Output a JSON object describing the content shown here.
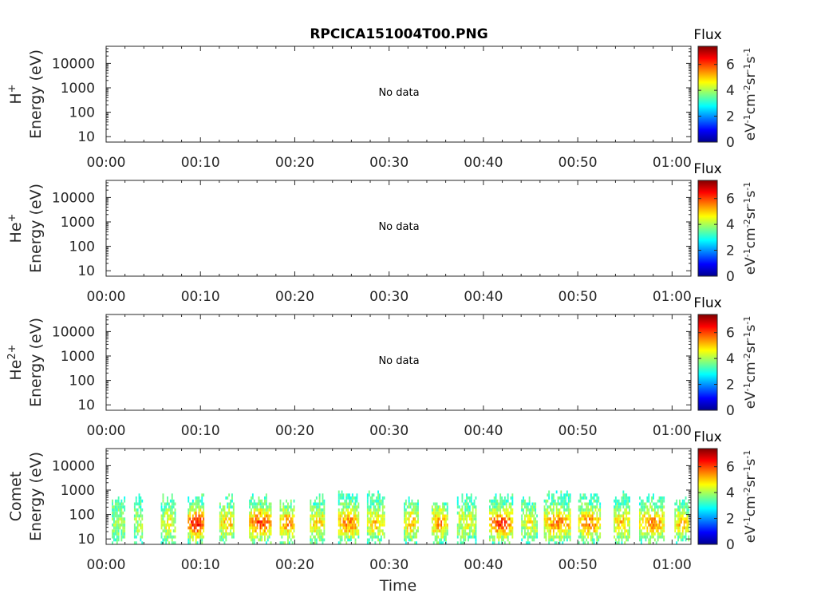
{
  "title": "RPCICA151004T00.PNG",
  "colorbar": {
    "label": "Flux",
    "unit_label": "eV-1cm-2sr-1s-1",
    "range": [
      0,
      7.4
    ],
    "ticks": [
      "0",
      "2",
      "4",
      "6"
    ]
  },
  "no_data_text": "No data",
  "x_axis": {
    "label": "Time",
    "ticks": [
      "00:00",
      "00:10",
      "00:20",
      "00:30",
      "00:40",
      "00:50",
      "01:00"
    ],
    "range_minutes": [
      0,
      62
    ]
  },
  "y_axis": {
    "ticks": [
      "10",
      "100",
      "1000",
      "10000"
    ],
    "scale": "log"
  },
  "chart_data": [
    {
      "type": "heatmap",
      "species": "H+",
      "ylabel_species": "H",
      "ylabel_species_sup": "+",
      "ylabel": "Energy (eV)",
      "has_data": false
    },
    {
      "type": "heatmap",
      "species": "He+",
      "ylabel_species": "He",
      "ylabel_species_sup": "+",
      "ylabel": "Energy (eV)",
      "has_data": false
    },
    {
      "type": "heatmap",
      "species": "He2+",
      "ylabel_species": "He",
      "ylabel_species_sup": "2+",
      "ylabel": "Energy (eV)",
      "has_data": false
    },
    {
      "type": "heatmap",
      "species": "Comet",
      "ylabel_species": "Comet",
      "ylabel_species_sup": "",
      "ylabel": "Energy (eV)",
      "has_data": true,
      "bursts": [
        {
          "t": 1.3,
          "w": 1.4,
          "top": 500,
          "peak": 4.0
        },
        {
          "t": 3.4,
          "w": 0.9,
          "top": 800,
          "peak": 4.0
        },
        {
          "t": 6.6,
          "w": 1.6,
          "top": 700,
          "peak": 4.5
        },
        {
          "t": 9.5,
          "w": 1.7,
          "top": 700,
          "peak": 6.5
        },
        {
          "t": 12.8,
          "w": 1.6,
          "top": 700,
          "peak": 5.0
        },
        {
          "t": 16.3,
          "w": 2.3,
          "top": 600,
          "peak": 6.0
        },
        {
          "t": 19.2,
          "w": 1.6,
          "top": 400,
          "peak": 5.5
        },
        {
          "t": 22.4,
          "w": 1.6,
          "top": 700,
          "peak": 5.0
        },
        {
          "t": 25.7,
          "w": 2.2,
          "top": 800,
          "peak": 5.5
        },
        {
          "t": 28.6,
          "w": 1.9,
          "top": 900,
          "peak": 5.0
        },
        {
          "t": 32.3,
          "w": 1.5,
          "top": 500,
          "peak": 5.0
        },
        {
          "t": 35.3,
          "w": 1.6,
          "top": 350,
          "peak": 5.5
        },
        {
          "t": 38.2,
          "w": 2.0,
          "top": 700,
          "peak": 4.5
        },
        {
          "t": 41.8,
          "w": 2.4,
          "top": 700,
          "peak": 6.0
        },
        {
          "t": 44.8,
          "w": 1.6,
          "top": 450,
          "peak": 4.5
        },
        {
          "t": 47.8,
          "w": 2.8,
          "top": 800,
          "peak": 5.5
        },
        {
          "t": 51.2,
          "w": 2.3,
          "top": 700,
          "peak": 5.5
        },
        {
          "t": 54.6,
          "w": 1.6,
          "top": 800,
          "peak": 5.0
        },
        {
          "t": 57.8,
          "w": 2.6,
          "top": 600,
          "peak": 5.5
        },
        {
          "t": 61.0,
          "w": 1.5,
          "top": 500,
          "peak": 5.0
        }
      ]
    }
  ]
}
